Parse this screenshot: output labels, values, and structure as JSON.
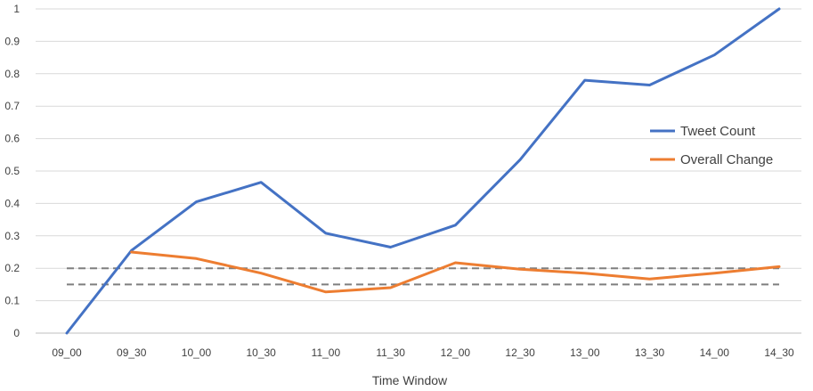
{
  "chart_data": {
    "type": "line",
    "title": "",
    "xlabel": "Time Window",
    "ylabel": "",
    "categories": [
      "09_00",
      "09_30",
      "10_00",
      "10_30",
      "11_00",
      "11_30",
      "12_00",
      "12_30",
      "13_00",
      "13_30",
      "14_00",
      "14_30"
    ],
    "ylim": [
      0,
      1
    ],
    "yticks": [
      "0",
      "0.1",
      "0.2",
      "0.3",
      "0.4",
      "0.5",
      "0.6",
      "0.7",
      "0.8",
      "0.9",
      "1"
    ],
    "grid": true,
    "legend_position": "right",
    "series": [
      {
        "name": "Tweet Count",
        "color": "#4472C4",
        "values": [
          0,
          0.255,
          0.405,
          0.465,
          0.308,
          0.265,
          0.333,
          0.535,
          0.78,
          0.765,
          0.858,
          1.0
        ]
      },
      {
        "name": "Overall Change",
        "color": "#ED7D31",
        "values": [
          null,
          0.25,
          0.23,
          0.185,
          0.127,
          0.14,
          0.217,
          0.197,
          0.185,
          0.167,
          0.185,
          0.205
        ]
      }
    ],
    "reference_lines": [
      {
        "y": 0.2,
        "color": "#7F7F7F",
        "style": "dashed"
      },
      {
        "y": 0.15,
        "color": "#7F7F7F",
        "style": "dashed"
      }
    ]
  }
}
